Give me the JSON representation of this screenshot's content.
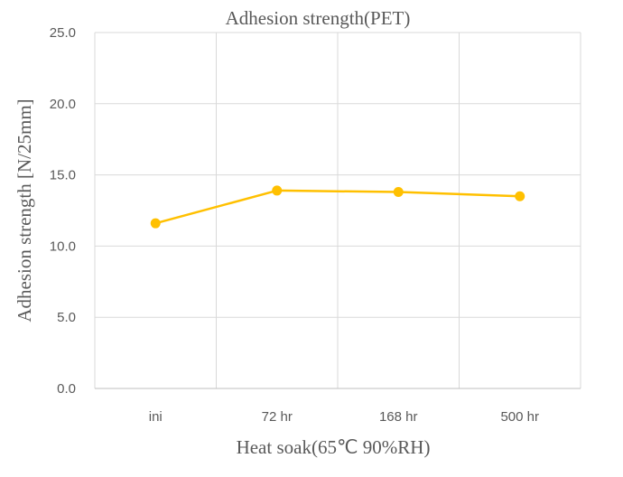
{
  "chart_data": {
    "type": "line",
    "title": "Adhesion strength(PET)",
    "xlabel": "Heat soak(65℃ 90%RH)",
    "ylabel": "Adhesion strength [N/25mm]",
    "categories": [
      "ini",
      "72 hr",
      "168 hr",
      "500 hr"
    ],
    "series": [
      {
        "values": [
          11.6,
          13.9,
          13.8,
          13.5
        ],
        "color": "#FFC000"
      }
    ],
    "ylim": [
      0,
      25
    ],
    "yticks": [
      "0.0",
      "5.0",
      "10.0",
      "15.0",
      "20.0",
      "25.0"
    ],
    "grid": true,
    "legend": "none"
  }
}
